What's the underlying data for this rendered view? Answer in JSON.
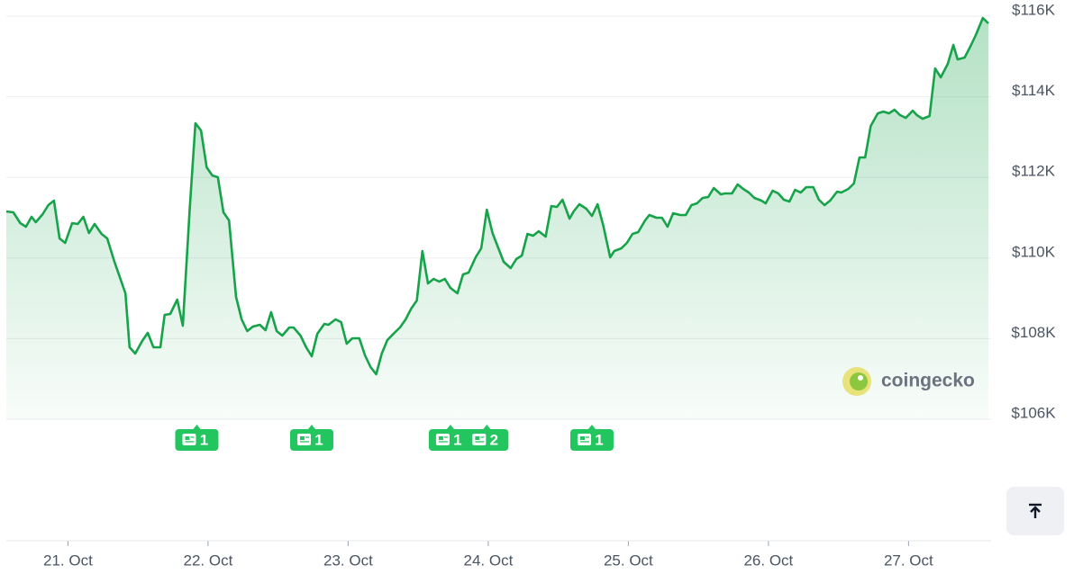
{
  "chart_data": {
    "type": "line",
    "color": "#16a34a",
    "grid": true,
    "xlim": [
      20.56,
      27.57
    ],
    "ylim": [
      106000,
      116000
    ],
    "yticks": [
      {
        "value": 106000,
        "label": "$106K"
      },
      {
        "value": 108000,
        "label": "$108K"
      },
      {
        "value": 110000,
        "label": "$110K"
      },
      {
        "value": 112000,
        "label": "$112K"
      },
      {
        "value": 114000,
        "label": "$114K"
      },
      {
        "value": 116000,
        "label": "$116K"
      }
    ],
    "xticks": [
      {
        "value": 21,
        "label": "21. Oct"
      },
      {
        "value": 22,
        "label": "22. Oct"
      },
      {
        "value": 23,
        "label": "23. Oct"
      },
      {
        "value": 24,
        "label": "24. Oct"
      },
      {
        "value": 25,
        "label": "25. Oct"
      },
      {
        "value": 26,
        "label": "26. Oct"
      },
      {
        "value": 27,
        "label": "27. Oct"
      }
    ],
    "x": [
      20.56,
      20.61,
      20.66,
      20.7,
      20.74,
      20.77,
      20.82,
      20.86,
      20.9,
      20.94,
      20.98,
      21.03,
      21.07,
      21.11,
      21.15,
      21.19,
      21.24,
      21.28,
      21.33,
      21.41,
      21.44,
      21.48,
      21.53,
      21.57,
      21.61,
      21.66,
      21.69,
      21.73,
      21.78,
      21.82,
      21.87,
      21.91,
      21.95,
      21.99,
      22.03,
      22.07,
      22.11,
      22.15,
      22.2,
      22.24,
      22.28,
      22.32,
      22.37,
      22.41,
      22.45,
      22.49,
      22.53,
      22.58,
      22.61,
      22.66,
      22.7,
      22.74,
      22.78,
      22.83,
      22.86,
      22.91,
      22.95,
      22.99,
      23.03,
      23.08,
      23.12,
      23.16,
      23.2,
      23.24,
      23.28,
      23.33,
      23.37,
      23.41,
      23.45,
      23.49,
      23.53,
      23.57,
      23.61,
      23.65,
      23.69,
      23.73,
      23.78,
      23.82,
      23.86,
      23.91,
      23.95,
      23.99,
      24.03,
      24.07,
      24.11,
      24.16,
      24.2,
      24.24,
      24.28,
      24.32,
      24.36,
      24.41,
      24.45,
      24.49,
      24.53,
      24.58,
      24.61,
      24.65,
      24.7,
      24.74,
      24.78,
      24.82,
      24.87,
      24.9,
      24.95,
      24.99,
      25.03,
      25.07,
      25.12,
      25.15,
      25.2,
      25.24,
      25.28,
      25.32,
      25.37,
      25.41,
      25.45,
      25.49,
      25.53,
      25.57,
      25.61,
      25.66,
      25.69,
      25.74,
      25.78,
      25.82,
      25.86,
      25.9,
      25.95,
      25.98,
      26.03,
      26.07,
      26.11,
      26.15,
      26.19,
      26.23,
      26.27,
      26.32,
      26.36,
      26.4,
      26.44,
      26.49,
      26.52,
      26.57,
      26.61,
      26.65,
      26.69,
      26.73,
      26.78,
      26.82,
      26.86,
      26.9,
      26.94,
      26.98,
      27.03,
      27.06,
      27.1,
      27.15,
      27.19,
      27.23,
      27.28,
      27.32,
      27.35,
      27.4,
      27.44,
      27.48,
      27.53,
      27.57
    ],
    "values": [
      111156,
      111134,
      110866,
      110777,
      111022,
      110888,
      111089,
      111312,
      111424,
      110487,
      110375,
      110866,
      110844,
      111022,
      110621,
      110844,
      110598,
      110487,
      109929,
      109125,
      107786,
      107629,
      107942,
      108143,
      107786,
      107786,
      108589,
      108612,
      108969,
      108321,
      111268,
      113344,
      113165,
      112250,
      112049,
      112004,
      111134,
      110933,
      109036,
      108478,
      108188,
      108299,
      108344,
      108210,
      108656,
      108188,
      108076,
      108277,
      108277,
      108076,
      107786,
      107563,
      108121,
      108366,
      108344,
      108478,
      108411,
      107875,
      108009,
      108009,
      107585,
      107295,
      107116,
      107629,
      107964,
      108143,
      108277,
      108478,
      108746,
      108946,
      110174,
      109371,
      109482,
      109415,
      109482,
      109259,
      109125,
      109594,
      109638,
      110018,
      110241,
      111201,
      110621,
      110264,
      109906,
      109750,
      109973,
      110063,
      110598,
      110554,
      110665,
      110531,
      111290,
      111268,
      111446,
      110978,
      111156,
      111335,
      111223,
      111045,
      111335,
      110821,
      110018,
      110174,
      110241,
      110375,
      110598,
      110643,
      110933,
      111067,
      111000,
      111000,
      110777,
      111112,
      111067,
      111067,
      111312,
      111357,
      111491,
      111513,
      111737,
      111580,
      111603,
      111603,
      111826,
      111714,
      111625,
      111491,
      111424,
      111357,
      111670,
      111603,
      111446,
      111402,
      111692,
      111625,
      111759,
      111759,
      111446,
      111312,
      111424,
      111647,
      111625,
      111714,
      111848,
      112496,
      112496,
      113277,
      113589,
      113634,
      113589,
      113679,
      113545,
      113478,
      113656,
      113545,
      113455,
      113522,
      114705,
      114482,
      114817,
      115286,
      114929,
      114973,
      115241,
      115531,
      115955,
      115821
    ],
    "events": [
      {
        "x": 21.92,
        "count": 1
      },
      {
        "x": 22.74,
        "count": 1
      },
      {
        "x": 23.73,
        "count": 1
      },
      {
        "x": 23.99,
        "count": 2
      },
      {
        "x": 24.74,
        "count": 1
      }
    ],
    "watermark": "coingecko"
  }
}
